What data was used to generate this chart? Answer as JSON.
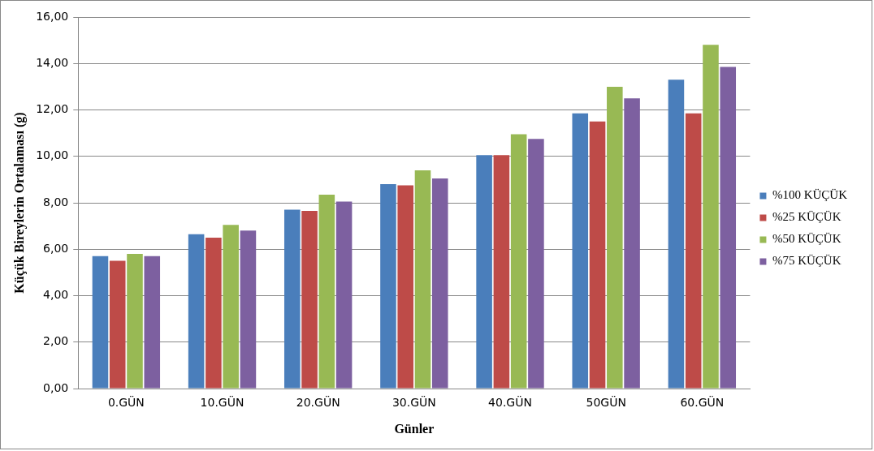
{
  "chart_data": {
    "type": "bar",
    "xlabel": "Günler",
    "ylabel": "Küçük Bireylerin Ortalaması (g)",
    "categories": [
      "0.GÜN",
      "10.GÜN",
      "20.GÜN",
      "30.GÜN",
      "40.GÜN",
      "50GÜN",
      "60.GÜN"
    ],
    "series": [
      {
        "name": "%100 KÜÇÜK",
        "color": "#4a7ebb",
        "values": [
          5.7,
          6.65,
          7.7,
          8.8,
          10.05,
          11.85,
          13.3
        ]
      },
      {
        "name": "%25 KÜÇÜK",
        "color": "#be4b48",
        "values": [
          5.5,
          6.5,
          7.65,
          8.75,
          10.05,
          11.5,
          11.85
        ]
      },
      {
        "name": "%50 KÜÇÜK",
        "color": "#98b954",
        "values": [
          5.8,
          7.05,
          8.35,
          9.4,
          10.95,
          13.0,
          14.8
        ]
      },
      {
        "name": "%75 KÜÇÜK",
        "color": "#7d60a0",
        "values": [
          5.7,
          6.8,
          8.05,
          9.05,
          10.75,
          12.5,
          13.85
        ]
      }
    ],
    "ylim": [
      0,
      16
    ],
    "yticks": [
      {
        "value": 0,
        "label": "0,00"
      },
      {
        "value": 2,
        "label": "2,00"
      },
      {
        "value": 4,
        "label": "4,00"
      },
      {
        "value": 6,
        "label": "6,00"
      },
      {
        "value": 8,
        "label": "8,00"
      },
      {
        "value": 10,
        "label": "10,00"
      },
      {
        "value": 12,
        "label": "12,00"
      },
      {
        "value": 14,
        "label": "14,00"
      },
      {
        "value": 16,
        "label": "16,00"
      }
    ],
    "grid": "y",
    "legend": "right"
  }
}
